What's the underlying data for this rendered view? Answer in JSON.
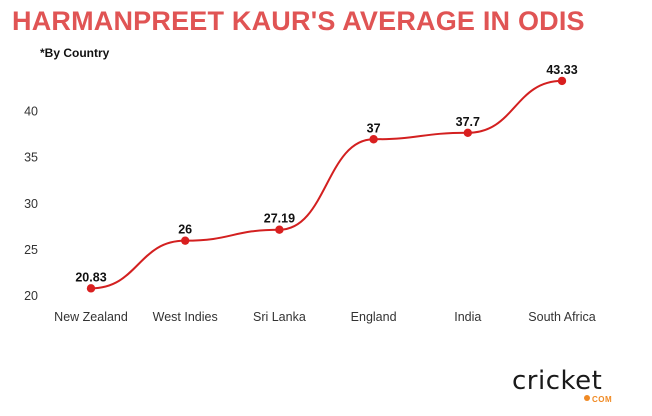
{
  "header": {
    "title": "HARMANPREET KAUR'S AVERAGE IN ODIS",
    "subtitle": "*By Country"
  },
  "logo": {
    "main": "cricket",
    "sub": "COM"
  },
  "colors": {
    "title": "#e05454",
    "line": "#d32020",
    "marker": "#d91f1f"
  },
  "chart_data": {
    "type": "line",
    "title": "HARMANPREET KAUR'S AVERAGE IN ODIS",
    "subtitle": "*By Country",
    "categories": [
      "New Zealand",
      "West Indies",
      "Sri Lanka",
      "England",
      "India",
      "South Africa"
    ],
    "series": [
      {
        "values": [
          20.83,
          26,
          27.19,
          37,
          37.7,
          43.33
        ],
        "labels": [
          "20.83",
          "26",
          "27.19",
          "37",
          "37.7",
          "43.33"
        ]
      }
    ],
    "yticks": [
      20,
      25,
      30,
      35,
      40
    ],
    "ylim": [
      20,
      43.33
    ],
    "grid": false,
    "legend": "none",
    "xlabel": "",
    "ylabel": ""
  }
}
